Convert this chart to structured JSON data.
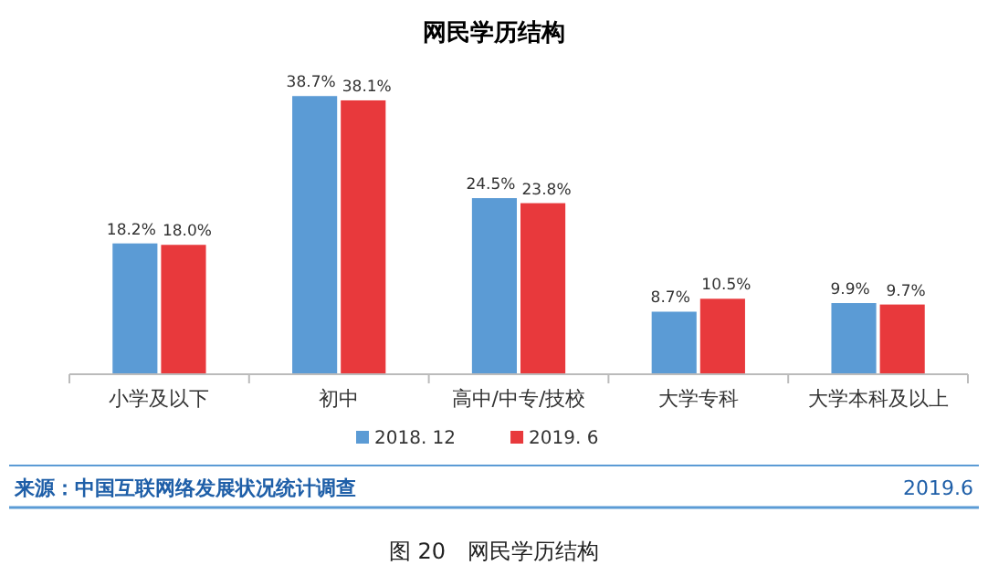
{
  "chart_data": {
    "type": "bar",
    "title": "网民学历结构",
    "categories": [
      "小学及以下",
      "初中",
      "高中/中专/技校",
      "大学专科",
      "大学本科及以上"
    ],
    "series": [
      {
        "name": "2018. 12",
        "color": "#5b9bd5",
        "values": [
          18.2,
          38.7,
          24.5,
          8.7,
          9.9
        ],
        "value_labels": [
          "18.2%",
          "38.7%",
          "24.5%",
          "8.7%",
          "9.9%"
        ]
      },
      {
        "name": "2019. 6",
        "color": "#e8393c",
        "values": [
          18.0,
          38.1,
          23.8,
          10.5,
          9.7
        ],
        "value_labels": [
          "18.0%",
          "38.1%",
          "23.8%",
          "10.5%",
          "9.7%"
        ]
      }
    ],
    "legend": "bottom",
    "annotations": [
      "来源：中国互联网络发展状况统计调查",
      "2019.6",
      "图 20　网民学历结构"
    ]
  }
}
